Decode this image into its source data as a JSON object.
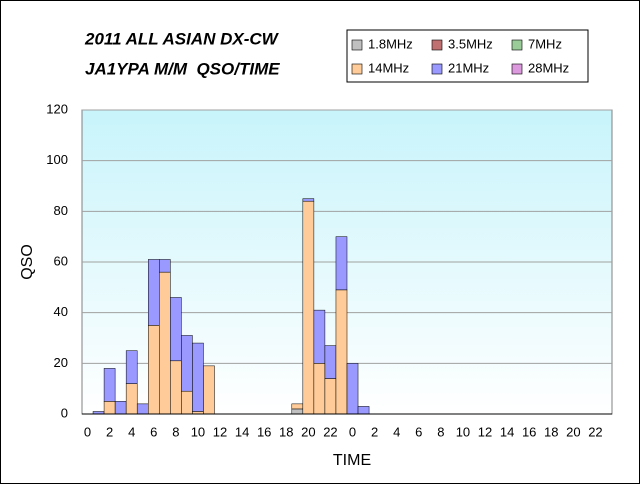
{
  "chart_data": {
    "type": "stacked_bar",
    "title": "2011 ALL ASIAN DX-CW",
    "subtitle": "JA1YPA M/M  QSO/TIME",
    "x_label": "TIME",
    "y_label": "QSO",
    "categories": [
      "0",
      null,
      "2",
      null,
      "4",
      null,
      "6",
      null,
      "8",
      null,
      "10",
      null,
      "12",
      null,
      "14",
      null,
      "16",
      null,
      "18",
      null,
      "20",
      null,
      "22",
      null,
      "0",
      null,
      "2",
      null,
      "4",
      null,
      "6",
      null,
      "8",
      null,
      "10",
      null,
      "12",
      null,
      "14",
      null,
      "16",
      null,
      "18",
      null,
      "20",
      null,
      "22",
      null
    ],
    "series": [
      {
        "name": "1.8MHz",
        "color": "#c0c0c0",
        "values": [
          0,
          0,
          0,
          0,
          0,
          0,
          0,
          0,
          0,
          0,
          0,
          0,
          0,
          0,
          0,
          0,
          0,
          0,
          0,
          2,
          0,
          0,
          0,
          0,
          0,
          0,
          0,
          0,
          0,
          0,
          0,
          0,
          0,
          0,
          0,
          0,
          0,
          0,
          0,
          0,
          0,
          0,
          0,
          0,
          0,
          0,
          0,
          0
        ]
      },
      {
        "name": "3.5MHz",
        "color": "#c07070",
        "values": [
          0,
          0,
          0,
          0,
          0,
          0,
          0,
          0,
          0,
          0,
          0,
          0,
          0,
          0,
          0,
          0,
          0,
          0,
          0,
          0,
          0,
          0,
          0,
          0,
          0,
          0,
          0,
          0,
          0,
          0,
          0,
          0,
          0,
          0,
          0,
          0,
          0,
          0,
          0,
          0,
          0,
          0,
          0,
          0,
          0,
          0,
          0,
          0
        ]
      },
      {
        "name": "7MHz",
        "color": "#99cc99",
        "values": [
          0,
          0,
          0,
          0,
          0,
          0,
          0,
          0,
          0,
          0,
          0,
          0,
          0,
          0,
          0,
          0,
          0,
          0,
          0,
          0,
          0,
          0,
          0,
          0,
          0,
          0,
          0,
          0,
          0,
          0,
          0,
          0,
          0,
          0,
          0,
          0,
          0,
          0,
          0,
          0,
          0,
          0,
          0,
          0,
          0,
          0,
          0,
          0
        ]
      },
      {
        "name": "14MHz",
        "color": "#ffcc99",
        "values": [
          0,
          0,
          5,
          0,
          12,
          0,
          35,
          56,
          21,
          9,
          1,
          19,
          0,
          0,
          0,
          0,
          0,
          0,
          0,
          2,
          84,
          20,
          14,
          49,
          0,
          0,
          0,
          0,
          0,
          0,
          0,
          0,
          0,
          0,
          0,
          0,
          0,
          0,
          0,
          0,
          0,
          0,
          0,
          0,
          0,
          0,
          0,
          0
        ]
      },
      {
        "name": "21MHz",
        "color": "#9999ff",
        "values": [
          0,
          1,
          13,
          5,
          13,
          4,
          26,
          5,
          25,
          22,
          27,
          0,
          0,
          0,
          0,
          0,
          0,
          0,
          0,
          0,
          1,
          21,
          13,
          21,
          20,
          3,
          0,
          0,
          0,
          0,
          0,
          0,
          0,
          0,
          0,
          0,
          0,
          0,
          0,
          0,
          0,
          0,
          0,
          0,
          0,
          0,
          0,
          0
        ]
      },
      {
        "name": "28MHz",
        "color": "#dd99dd",
        "values": [
          0,
          0,
          0,
          0,
          0,
          0,
          0,
          0,
          0,
          0,
          0,
          0,
          0,
          0,
          0,
          0,
          0,
          0,
          0,
          0,
          0,
          0,
          0,
          0,
          0,
          0,
          0,
          0,
          0,
          0,
          0,
          0,
          0,
          0,
          0,
          0,
          0,
          0,
          0,
          0,
          0,
          0,
          0,
          0,
          0,
          0,
          0,
          0
        ]
      }
    ],
    "ylim": [
      0,
      120
    ],
    "yticks": [
      0,
      20,
      40,
      60,
      80,
      100,
      120
    ],
    "grid": true
  }
}
